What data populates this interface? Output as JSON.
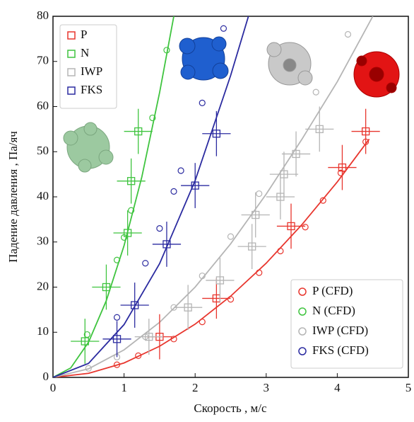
{
  "chart_data": {
    "type": "scatter",
    "x_label": "Скорость , м/с",
    "y_label": "Падение давления , Па/яч",
    "xlim": [
      0,
      5
    ],
    "ylim": [
      0,
      80
    ],
    "xticks": [
      0,
      1,
      2,
      3,
      4,
      5
    ],
    "yticks": [
      0,
      10,
      20,
      30,
      40,
      50,
      60,
      70,
      80
    ],
    "series": [
      {
        "name": "P",
        "color": "#e8362e",
        "x": [
          1.5,
          2.3,
          3.35,
          4.07,
          4.4
        ],
        "values": [
          9,
          17.5,
          33.5,
          46.5,
          54.5
        ],
        "xerr": [
          0.18,
          0.2,
          0.2,
          0.2,
          0.2
        ],
        "yerr": [
          5,
          4.5,
          5,
          5,
          5
        ]
      },
      {
        "name": "N",
        "color": "#3fc43f",
        "x": [
          0.45,
          0.75,
          1.05,
          1.1,
          1.2
        ],
        "values": [
          8,
          20,
          32,
          43.5,
          54.5
        ],
        "xerr": [
          0.2,
          0.2,
          0.2,
          0.2,
          0.2
        ],
        "yerr": [
          5,
          5,
          5,
          5,
          5
        ]
      },
      {
        "name": "IWP",
        "color": "#b5b5b5",
        "x": [
          1.35,
          1.9,
          2.35,
          2.8,
          2.85,
          3.2,
          3.25,
          3.42,
          3.75
        ],
        "values": [
          9,
          15.5,
          21.5,
          29,
          36,
          40,
          45,
          49.5,
          55
        ],
        "xerr": [
          0.2,
          0.2,
          0.2,
          0.2,
          0.2,
          0.2,
          0.2,
          0.2,
          0.2
        ],
        "yerr": [
          4,
          5,
          5,
          5,
          5,
          5,
          5,
          5,
          5
        ]
      },
      {
        "name": "FKS",
        "color": "#2b2ba0",
        "x": [
          0.9,
          1.15,
          1.6,
          2.0,
          2.3
        ],
        "values": [
          8.5,
          16,
          29.5,
          42.5,
          54
        ],
        "xerr": [
          0.2,
          0.2,
          0.2,
          0.2,
          0.2
        ],
        "yerr": [
          4,
          5,
          5,
          5,
          5
        ]
      }
    ],
    "cfd_series": [
      {
        "name": "P (CFD)",
        "color": "#e8362e",
        "x": [
          0.9,
          1.2,
          1.7,
          2.1,
          2.5,
          2.9,
          3.2,
          3.55,
          3.8,
          4.05,
          4.4
        ],
        "values": [
          2.8,
          4.8,
          8.5,
          12.3,
          17.3,
          23.2,
          28,
          33.3,
          39.2,
          45.3,
          52.2
        ]
      },
      {
        "name": "N (CFD)",
        "color": "#3fc43f",
        "x": [
          0.48,
          0.9,
          1.0,
          1.1,
          1.4,
          1.6
        ],
        "values": [
          9.5,
          26,
          31,
          37,
          57.5,
          72.5
        ]
      },
      {
        "name": "IWP (CFD)",
        "color": "#b5b5b5",
        "x": [
          0.5,
          0.9,
          1.3,
          1.7,
          2.1,
          2.5,
          2.9,
          3.7,
          4.15
        ],
        "values": [
          2,
          4.5,
          9,
          15.5,
          22.5,
          31.2,
          40.7,
          63.2,
          76
        ]
      },
      {
        "name": "FKS (CFD)",
        "color": "#2b2ba0",
        "x": [
          0.9,
          1.3,
          1.5,
          1.7,
          1.8,
          2.1,
          2.4
        ],
        "values": [
          13.3,
          25.3,
          33,
          41.2,
          45.8,
          60.8,
          77.3
        ]
      }
    ],
    "fits": [
      {
        "color": "#e8362e",
        "x": [
          0,
          0.5,
          1,
          1.5,
          2,
          2.5,
          3,
          3.5,
          4,
          4.45
        ],
        "values": [
          0,
          0.9,
          3.2,
          6.9,
          11.8,
          18,
          25.3,
          33.8,
          43.3,
          52.8
        ]
      },
      {
        "color": "#3fc43f",
        "x": [
          0,
          0.25,
          0.5,
          0.75,
          1,
          1.25,
          1.5,
          1.7
        ],
        "values": [
          0,
          2.1,
          7.8,
          17,
          29.2,
          44.4,
          63.1,
          80
        ]
      },
      {
        "color": "#b5b5b5",
        "x": [
          0,
          0.5,
          1,
          1.5,
          2,
          2.5,
          3,
          3.5,
          4,
          4.5
        ],
        "values": [
          0,
          1.9,
          6.1,
          12.2,
          20,
          29.6,
          40.6,
          52.7,
          65.5,
          80
        ]
      },
      {
        "color": "#2b2ba0",
        "x": [
          0,
          0.5,
          1,
          1.5,
          2,
          2.5,
          2.75
        ],
        "values": [
          0,
          3.1,
          11.7,
          25.2,
          43.6,
          66.9,
          80
        ]
      }
    ]
  }
}
